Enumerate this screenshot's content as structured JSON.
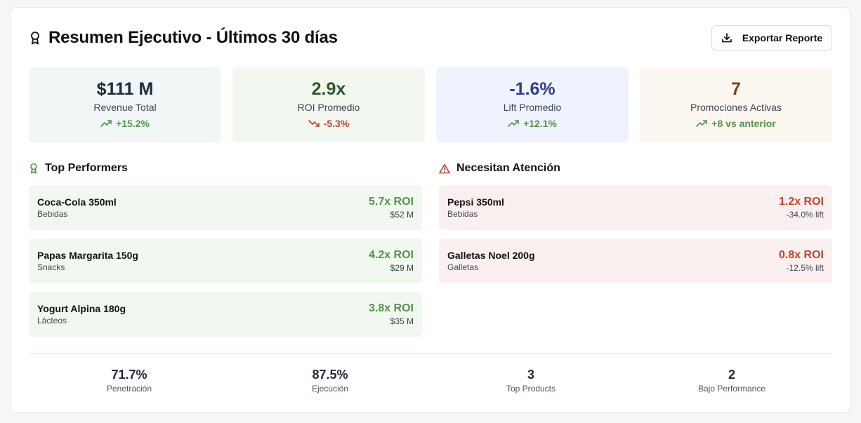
{
  "header": {
    "title": "Resumen Ejecutivo - Últimos 30 días",
    "export_label": "Exportar Reporte"
  },
  "kpis": [
    {
      "value": "$111 M",
      "label": "Revenue Total",
      "change": "+15.2%",
      "trend": "up",
      "bg": "#f1f6f6",
      "color": "#1e2d3a"
    },
    {
      "value": "2.9x",
      "label": "ROI Promedio",
      "change": "-5.3%",
      "trend": "down",
      "bg": "#f2f8f0",
      "color": "#2f5a2b"
    },
    {
      "value": "-1.6%",
      "label": "Lift Promedio",
      "change": "+12.1%",
      "trend": "up",
      "bg": "#eef3fd",
      "color": "#2f3f8c"
    },
    {
      "value": "7",
      "label": "Promociones Activas",
      "change": "+8 vs anterior",
      "trend": "up",
      "bg": "#fbf6ef",
      "color": "#7a4318"
    }
  ],
  "top": {
    "title": "Top Performers",
    "items": [
      {
        "name": "Coca-Cola 350ml",
        "category": "Bebidas",
        "roi": "5.7x ROI",
        "sub": "$52 M"
      },
      {
        "name": "Papas Margarita 150g",
        "category": "Snacks",
        "roi": "4.2x ROI",
        "sub": "$29 M"
      },
      {
        "name": "Yogurt Alpina 180g",
        "category": "Lácteos",
        "roi": "3.8x ROI",
        "sub": "$35 M"
      }
    ]
  },
  "attention": {
    "title": "Necesitan Atención",
    "items": [
      {
        "name": "Pepsi 350ml",
        "category": "Bebidas",
        "roi": "1.2x ROI",
        "sub": "-34.0% lift"
      },
      {
        "name": "Galletas Noel 200g",
        "category": "Galletas",
        "roi": "0.8x ROI",
        "sub": "-12.5% lift"
      }
    ]
  },
  "stats": [
    {
      "value": "71.7%",
      "label": "Penetración"
    },
    {
      "value": "87.5%",
      "label": "Ejecución"
    },
    {
      "value": "3",
      "label": "Top Products"
    },
    {
      "value": "2",
      "label": "Bajo Performance"
    }
  ],
  "colors": {
    "positive": "#55934a",
    "negative": "#c0442f"
  },
  "icons": {
    "title": "award-icon",
    "export": "download-icon",
    "trend_up": "trending-up-icon",
    "trend_down": "trending-down-icon",
    "attention": "alert-triangle-icon"
  }
}
